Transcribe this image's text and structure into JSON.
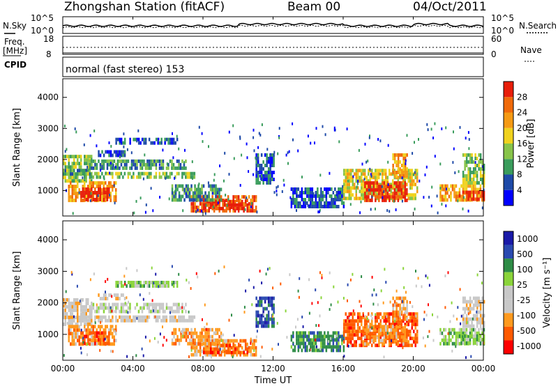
{
  "header": {
    "station": "Zhongshan Station (fitACF)",
    "beam": "Beam 00",
    "date": "04/Oct/2011"
  },
  "side_labels": {
    "nsky": "N.Sky",
    "freq_line1": "Freq.",
    "freq_line2": "[MHz]",
    "cpid": "CPID",
    "nsearch": "N.Search",
    "nave": "Nave"
  },
  "cpid_text": "normal (fast stereo) 153",
  "colors": {
    "power": [
      "#0000ff",
      "#1e4aa8",
      "#3a9c5c",
      "#88c44a",
      "#f0d21e",
      "#f59a14",
      "#f06a0a",
      "#e81e0a"
    ],
    "velocity": [
      "#ff0000",
      "#ff5a00",
      "#ff9a1e",
      "#c8c8c8",
      "#c8c8c8",
      "#8ad43a",
      "#2e8c46",
      "#2a4ab0",
      "#1a1aa8"
    ]
  },
  "chart_data": [
    {
      "type": "line",
      "panel": "noise",
      "series": [
        {
          "name": "N.Sky"
        },
        {
          "name": "N.Search"
        }
      ],
      "y_ticks_left": [
        "10^5",
        "10^0"
      ],
      "y_ticks_right": [
        "10^5",
        "10^0"
      ],
      "xlim": [
        "00:00",
        "24:00"
      ]
    },
    {
      "type": "line",
      "panel": "freq_nave",
      "series": [
        {
          "name": "Freq."
        },
        {
          "name": "Nave"
        }
      ],
      "y_ticks_left": [
        "18",
        "8"
      ],
      "y_ticks_right": [
        "60",
        "0"
      ]
    },
    {
      "type": "heatmap",
      "panel": "power",
      "ylabel": "Slant Range [km]",
      "yticks": [
        "4000",
        "3000",
        "2000",
        "1000"
      ],
      "ylim": [
        180,
        4600
      ],
      "colorbar_label": "Power [dB]",
      "colorbar_ticks": [
        "28",
        "24",
        "20",
        "16",
        "12",
        "8",
        "4"
      ],
      "colorbar_range": [
        0,
        32
      ]
    },
    {
      "type": "heatmap",
      "panel": "velocity",
      "ylabel": "Slant Range [km]",
      "yticks": [
        "4000",
        "3000",
        "2000",
        "1000"
      ],
      "ylim": [
        180,
        4600
      ],
      "colorbar_label": "Velocity [m s⁻¹]",
      "colorbar_ticks": [
        "1000",
        "500",
        "100",
        "25",
        "-25",
        "-100",
        "-500",
        "-1000"
      ],
      "xlabel": "Time UT",
      "xticks": [
        "00:00",
        "04:00",
        "08:00",
        "12:00",
        "16:00",
        "20:00",
        "00:00"
      ]
    }
  ]
}
